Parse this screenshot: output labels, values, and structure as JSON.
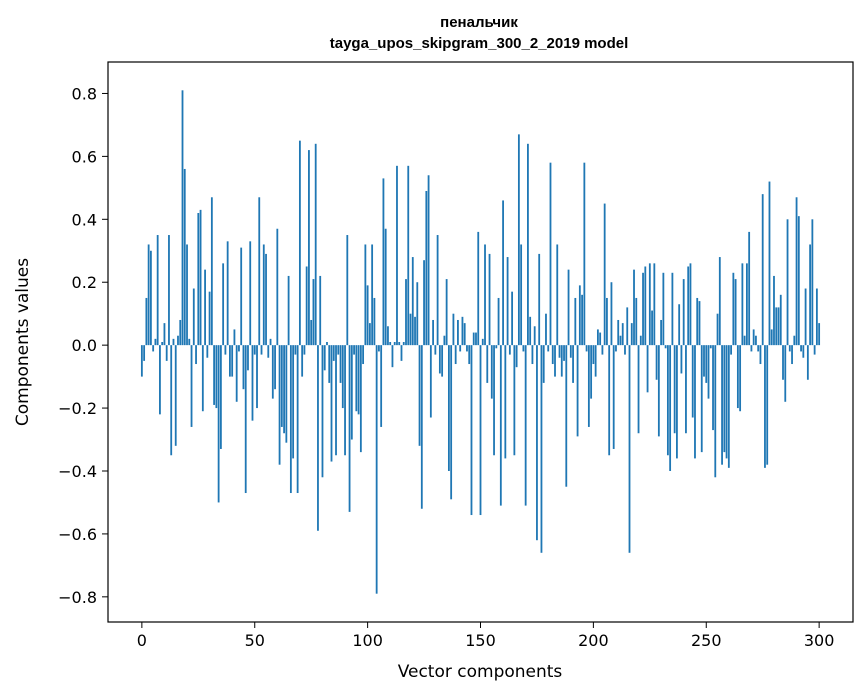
{
  "chart_data": {
    "type": "bar",
    "title": "пенальчик",
    "subtitle": "tayga_upos_skipgram_300_2_2019 model",
    "xlabel": "Vector components",
    "ylabel": "Components values",
    "xlim": [
      -15,
      315
    ],
    "ylim": [
      -0.88,
      0.9
    ],
    "xticks": [
      0,
      50,
      100,
      150,
      200,
      250,
      300
    ],
    "yticks": [
      -0.8,
      -0.6,
      -0.4,
      -0.2,
      0.0,
      0.2,
      0.4,
      0.6,
      0.8
    ],
    "ytick_labels": [
      "−0.8",
      "−0.6",
      "−0.4",
      "−0.2",
      "0.0",
      "0.2",
      "0.4",
      "0.6",
      "0.8"
    ],
    "grid": false,
    "bar_color": "#1f77b4",
    "values": [
      -0.1,
      -0.05,
      0.15,
      0.32,
      0.3,
      -0.02,
      0.02,
      0.35,
      -0.22,
      0.01,
      0.07,
      -0.05,
      0.35,
      -0.35,
      0.02,
      -0.32,
      0.03,
      0.08,
      0.81,
      0.56,
      0.32,
      0.02,
      -0.26,
      0.18,
      -0.06,
      0.42,
      0.43,
      -0.21,
      0.24,
      -0.04,
      0.17,
      0.47,
      -0.19,
      -0.2,
      -0.5,
      -0.33,
      0.26,
      -0.03,
      0.33,
      -0.1,
      -0.1,
      0.05,
      -0.18,
      -0.02,
      0.31,
      -0.14,
      -0.47,
      -0.08,
      0.33,
      -0.24,
      -0.03,
      -0.2,
      0.47,
      -0.03,
      0.32,
      0.29,
      -0.04,
      0.02,
      -0.17,
      -0.14,
      0.37,
      -0.38,
      -0.26,
      -0.28,
      -0.31,
      0.22,
      -0.47,
      -0.36,
      -0.03,
      -0.47,
      0.65,
      -0.1,
      -0.03,
      0.25,
      0.62,
      0.08,
      0.21,
      0.64,
      -0.59,
      0.22,
      -0.42,
      -0.08,
      0.01,
      -0.12,
      -0.37,
      -0.05,
      -0.35,
      -0.03,
      -0.12,
      -0.2,
      -0.35,
      0.35,
      -0.53,
      -0.3,
      -0.03,
      -0.21,
      -0.22,
      -0.34,
      -0.06,
      0.32,
      0.19,
      0.07,
      0.32,
      0.15,
      -0.79,
      -0.02,
      -0.26,
      0.53,
      0.37,
      0.06,
      0.01,
      -0.07,
      0.01,
      0.57,
      0.01,
      -0.05,
      0.01,
      0.21,
      0.57,
      0.1,
      0.28,
      0.09,
      0.2,
      -0.32,
      -0.52,
      0.27,
      0.49,
      0.54,
      -0.23,
      0.08,
      -0.03,
      0.35,
      -0.09,
      -0.1,
      0.03,
      0.21,
      -0.4,
      -0.49,
      0.1,
      -0.06,
      0.08,
      -0.02,
      0.09,
      0.07,
      -0.02,
      -0.06,
      -0.54,
      0.04,
      0.04,
      0.36,
      -0.54,
      0.02,
      0.32,
      -0.12,
      0.29,
      -0.17,
      -0.35,
      -0.01,
      0.15,
      -0.51,
      0.46,
      -0.36,
      0.28,
      -0.03,
      0.17,
      -0.35,
      -0.07,
      0.67,
      0.32,
      -0.02,
      -0.51,
      0.64,
      0.09,
      -0.06,
      0.06,
      -0.62,
      0.29,
      -0.66,
      -0.12,
      0.1,
      -0.02,
      0.58,
      -0.06,
      -0.1,
      0.32,
      -0.04,
      -0.1,
      -0.05,
      -0.45,
      0.24,
      -0.04,
      -0.12,
      0.15,
      -0.29,
      0.19,
      0.16,
      0.58,
      -0.02,
      -0.26,
      -0.17,
      -0.06,
      -0.1,
      0.05,
      0.04,
      -0.03,
      0.45,
      0.15,
      -0.35,
      0.2,
      -0.33,
      -0.02,
      0.08,
      0.03,
      0.07,
      -0.03,
      0.12,
      -0.66,
      0.07,
      0.24,
      0.15,
      -0.28,
      0.03,
      0.23,
      0.25,
      -0.15,
      0.26,
      0.11,
      0.26,
      -0.11,
      -0.29,
      0.08,
      0.23,
      -0.01,
      -0.35,
      -0.4,
      0.23,
      -0.28,
      -0.36,
      0.13,
      -0.09,
      0.21,
      -0.28,
      0.25,
      0.26,
      -0.23,
      -0.36,
      0.15,
      0.14,
      -0.34,
      -0.1,
      -0.12,
      -0.17,
      -0.01,
      -0.27,
      -0.42,
      0.1,
      0.28,
      -0.38,
      -0.34,
      -0.36,
      -0.39,
      -0.03,
      0.23,
      0.21,
      -0.2,
      -0.21,
      0.26,
      0.03,
      0.26,
      0.36,
      -0.02,
      0.05,
      0.03,
      -0.02,
      -0.06,
      0.48,
      -0.39,
      -0.38,
      0.52,
      0.05,
      0.22,
      0.12,
      0.12,
      0.16,
      -0.11,
      -0.18,
      0.4,
      -0.02,
      -0.06,
      0.03,
      0.47,
      0.41,
      -0.02,
      -0.04,
      0.18,
      -0.11,
      0.32,
      0.4,
      -0.03,
      0.18,
      0.07
    ]
  }
}
